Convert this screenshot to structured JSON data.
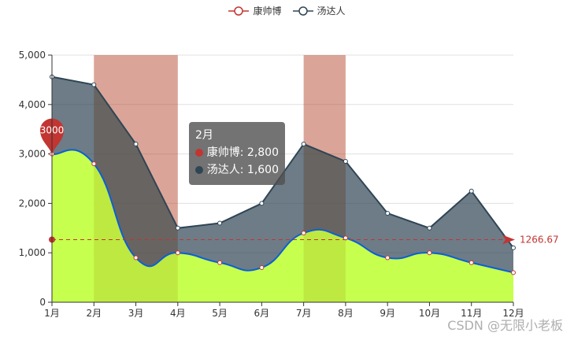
{
  "legend": [
    {
      "name": "康帅博",
      "color": "#c23531"
    },
    {
      "name": "汤达人",
      "color": "#2f4554"
    }
  ],
  "tooltip": {
    "title": "2月",
    "rows": [
      {
        "label": "康帅博: 2,800",
        "color": "#c23531"
      },
      {
        "label": "汤达人: 1,600",
        "color": "#2f4554"
      }
    ]
  },
  "watermark": "CSDN @无限小老板",
  "markPoint": {
    "label": "3000"
  },
  "markLine": {
    "label": "1266.67"
  },
  "chart_data": {
    "type": "area",
    "title": "",
    "xlabel": "",
    "ylabel": "",
    "categories": [
      "1月",
      "2月",
      "3月",
      "4月",
      "5月",
      "6月",
      "7月",
      "8月",
      "9月",
      "10月",
      "11月",
      "12月"
    ],
    "ylim": [
      0,
      5000
    ],
    "yticks": [
      "0",
      "1,000",
      "2,000",
      "3,000",
      "4,000",
      "5,000"
    ],
    "grid": true,
    "stacked": true,
    "legend_position": "top",
    "series": [
      {
        "name": "康帅博",
        "smooth": true,
        "line_color": "#0b5fd8",
        "fill": "#c4ff45",
        "values": [
          3000,
          2800,
          900,
          1000,
          800,
          700,
          1400,
          1300,
          900,
          1000,
          800,
          600
        ]
      },
      {
        "name": "汤达人",
        "smooth": false,
        "line_color": "#2f4554",
        "fill": "#6c7a86",
        "values": [
          1560,
          1600,
          2300,
          500,
          800,
          1300,
          1800,
          1550,
          900,
          500,
          1450,
          500
        ]
      }
    ],
    "markArea": [
      {
        "from": "2月",
        "to": "4月"
      },
      {
        "from": "7月",
        "to": "8月"
      }
    ],
    "markPoint": {
      "series": "康帅博",
      "type": "max",
      "value": 3000,
      "x": "1月"
    },
    "markLine": {
      "series": "康帅博",
      "type": "average",
      "value": 1266.67
    }
  }
}
